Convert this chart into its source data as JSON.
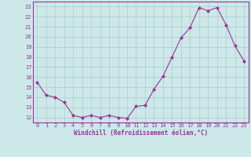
{
  "x": [
    0,
    1,
    2,
    3,
    4,
    5,
    6,
    7,
    8,
    9,
    10,
    11,
    12,
    13,
    14,
    15,
    16,
    17,
    18,
    19,
    20,
    21,
    22,
    23
  ],
  "y": [
    15.5,
    14.2,
    14.0,
    13.5,
    12.2,
    12.0,
    12.2,
    12.0,
    12.2,
    12.0,
    11.9,
    13.1,
    13.2,
    14.8,
    16.1,
    18.0,
    19.9,
    20.9,
    22.9,
    22.6,
    22.9,
    21.2,
    19.1,
    17.6
  ],
  "line_color": "#993399",
  "marker": "D",
  "marker_size": 2.0,
  "bg_color": "#cce8e8",
  "grid_color": "#aacccc",
  "xlabel": "Windchill (Refroidissement éolien,°C)",
  "xlabel_color": "#993399",
  "tick_color": "#993399",
  "ylim": [
    11.5,
    23.5
  ],
  "xlim": [
    -0.5,
    23.5
  ],
  "yticks": [
    12,
    13,
    14,
    15,
    16,
    17,
    18,
    19,
    20,
    21,
    22,
    23
  ],
  "xticks": [
    0,
    1,
    2,
    3,
    4,
    5,
    6,
    7,
    8,
    9,
    10,
    11,
    12,
    13,
    14,
    15,
    16,
    17,
    18,
    19,
    20,
    21,
    22,
    23
  ],
  "tick_fontsize": 5.0,
  "xlabel_fontsize": 5.5
}
